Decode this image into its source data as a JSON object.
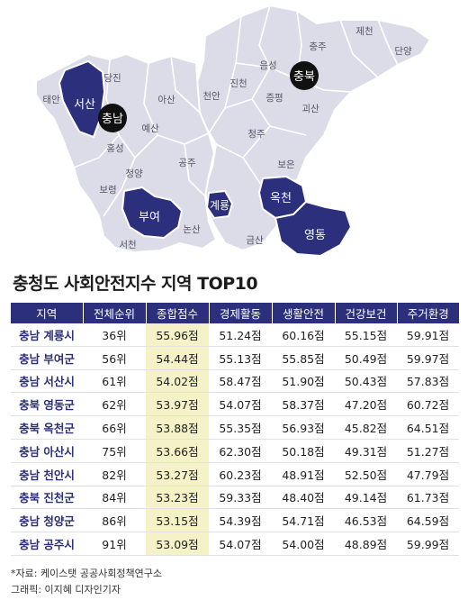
{
  "map": {
    "labels": {
      "chungju": "충주",
      "jecheon": "제천",
      "danyang": "단양",
      "eumseong": "음성",
      "jincheon": "진천",
      "jeungpyeong": "증평",
      "goesan": "괴산",
      "cheongju": "청주",
      "boeun": "보은",
      "geumsan": "금산",
      "dangjin": "당진",
      "taean": "태안",
      "asan": "아산",
      "cheonan": "천안",
      "yesan": "예산",
      "hongseong": "홍성",
      "cheongyang": "청양",
      "gongju": "공주",
      "boryeong": "보령",
      "seocheon": "서천",
      "nonsan": "논산"
    },
    "highlighted": {
      "seosan": "서산",
      "buyeo": "부여",
      "gyeryong": "계룡",
      "okcheon": "옥천",
      "yeongdong": "영동"
    },
    "province_badges": {
      "chungnam": "충남",
      "chungbuk": "충북"
    }
  },
  "table_title": "충청도 사회안전지수 지역 TOP10",
  "table": {
    "headers": [
      "지역",
      "전체순위",
      "종합점수",
      "경제활동",
      "생활안전",
      "건강보건",
      "주거환경"
    ],
    "rows": [
      [
        "충남 계룡시",
        "36위",
        "55.96점",
        "51.24점",
        "60.16점",
        "55.15점",
        "59.91점"
      ],
      [
        "충남 부여군",
        "56위",
        "54.44점",
        "55.13점",
        "55.85점",
        "50.49점",
        "59.97점"
      ],
      [
        "충남 서산시",
        "61위",
        "54.02점",
        "58.47점",
        "51.90점",
        "50.43점",
        "57.83점"
      ],
      [
        "충북 영동군",
        "62위",
        "53.97점",
        "54.07점",
        "58.37점",
        "47.20점",
        "60.72점"
      ],
      [
        "충북 옥천군",
        "66위",
        "53.88점",
        "55.35점",
        "56.93점",
        "45.82점",
        "64.51점"
      ],
      [
        "충남 아산시",
        "75위",
        "53.66점",
        "62.30점",
        "50.18점",
        "49.31점",
        "51.27점"
      ],
      [
        "충남 천안시",
        "82위",
        "53.27점",
        "60.23점",
        "48.91점",
        "52.50점",
        "47.79점"
      ],
      [
        "충북 진천군",
        "84위",
        "53.23점",
        "59.33점",
        "48.40점",
        "49.14점",
        "61.73점"
      ],
      [
        "충남 청양군",
        "86위",
        "53.15점",
        "54.39점",
        "54.71점",
        "46.53점",
        "64.59점"
      ],
      [
        "충남 공주시",
        "91위",
        "53.09점",
        "54.07점",
        "54.00점",
        "48.89점",
        "59.99점"
      ]
    ]
  },
  "source": "*자료: 케이스탯 공공사회정책연구소",
  "credit": "그래픽: 이지혜 디자인기자",
  "colors": {
    "map_base": "#dcdce9",
    "map_border": "#ffffff",
    "highlight": "#2b2f7c",
    "badge": "#111111",
    "header_bg": "#2b2f7c",
    "total_column_bg": "#f4f2c6"
  }
}
